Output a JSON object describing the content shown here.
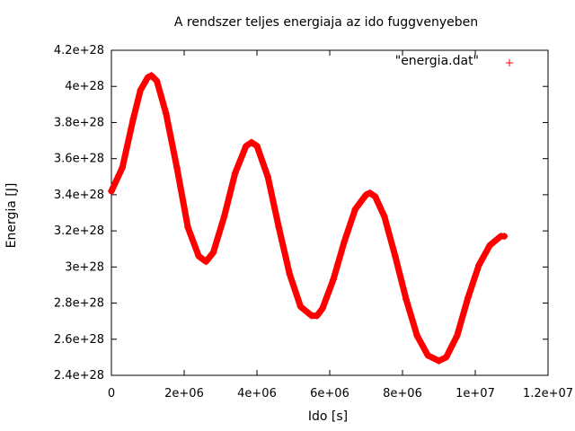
{
  "chart_data": {
    "type": "scatter",
    "title": "A rendszer teljes energiaja az ido fuggvenyeben",
    "xlabel": "Ido [s]",
    "ylabel": "Energia [J]",
    "xlim": [
      0,
      12000000
    ],
    "ylim": [
      2.4e+28,
      4.2e+28
    ],
    "xticks": [
      0,
      2000000,
      4000000,
      6000000,
      8000000,
      10000000,
      12000000
    ],
    "xtick_labels": [
      "0",
      "2e+06",
      "4e+06",
      "6e+06",
      "8e+06",
      "1e+07",
      "1.2e+07"
    ],
    "yticks": [
      2.4e+28,
      2.6e+28,
      2.8e+28,
      3e+28,
      3.2e+28,
      3.4e+28,
      3.6e+28,
      3.8e+28,
      4e+28,
      4.2e+28
    ],
    "ytick_labels": [
      "2.4e+28",
      "2.6e+28",
      "2.8e+28",
      "3e+28",
      "3.2e+28",
      "3.4e+28",
      "3.6e+28",
      "3.8e+28",
      "4e+28",
      "4.2e+28"
    ],
    "legend_position": "top-right",
    "grid": false,
    "series": [
      {
        "name": "\"energia.dat\"",
        "color": "#ff0000",
        "marker": "plus",
        "x": [
          0,
          300000,
          600000,
          800000,
          1000000,
          1100000,
          1250000,
          1500000,
          1800000,
          2100000,
          2400000,
          2600000,
          2800000,
          3100000,
          3400000,
          3700000,
          3850000,
          4000000,
          4300000,
          4600000,
          4900000,
          5200000,
          5500000,
          5650000,
          5800000,
          6100000,
          6400000,
          6700000,
          7000000,
          7100000,
          7250000,
          7500000,
          7800000,
          8100000,
          8400000,
          8700000,
          9000000,
          9200000,
          9500000,
          9800000,
          10100000,
          10400000,
          10700000,
          10800000
        ],
        "y": [
          3.42e+28,
          3.55e+28,
          3.82e+28,
          3.98e+28,
          4.05e+28,
          4.06e+28,
          4.03e+28,
          3.85e+28,
          3.55e+28,
          3.22e+28,
          3.06e+28,
          3.03e+28,
          3.08e+28,
          3.28e+28,
          3.52e+28,
          3.67e+28,
          3.69e+28,
          3.67e+28,
          3.5e+28,
          3.22e+28,
          2.96e+28,
          2.78e+28,
          2.73e+28,
          2.73e+28,
          2.77e+28,
          2.93e+28,
          3.14e+28,
          3.32e+28,
          3.4e+28,
          3.41e+28,
          3.39e+28,
          3.28e+28,
          3.06e+28,
          2.82e+28,
          2.62e+28,
          2.51e+28,
          2.48e+28,
          2.5e+28,
          2.62e+28,
          2.83e+28,
          3.01e+28,
          3.12e+28,
          3.17e+28,
          3.17e+28
        ]
      }
    ]
  }
}
